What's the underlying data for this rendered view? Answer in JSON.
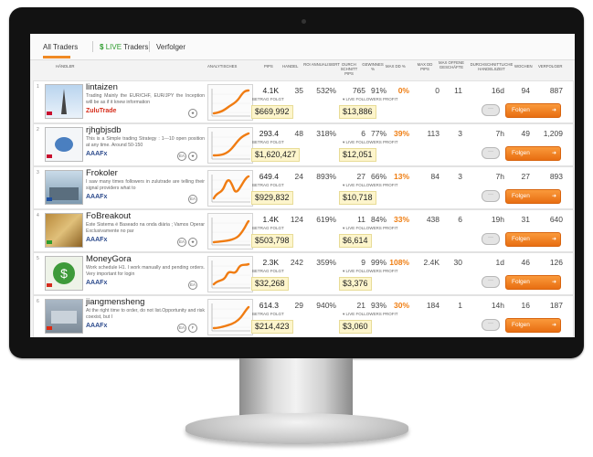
{
  "tabs": {
    "all": "All Traders",
    "live_dollar": "$",
    "live_word": "LIVE",
    "live_rest": "Traders",
    "followers": "Verfolger"
  },
  "headers": {
    "handler": "HÄNDLER",
    "analytics": "ANALYTISCHES",
    "pips": "PIPS",
    "handel": "HANDEL",
    "roi": "ROI ANNUALISIERT",
    "durch": "DURCH SCHNITT PIPS",
    "gewinnes": "GEWINNES %",
    "maxdd": "MAX DD %",
    "maxdd_pips": "MAX DD PIPS",
    "offene": "MAX OFFENE GESCHÄFTE",
    "zeit": "DURCHSCHNITTLICHE HANDELSZEIT",
    "wochen": "WOCHEN",
    "verfolger": "VERFOLGER"
  },
  "labels": {
    "betrag": "BETRAG FOLGT",
    "live_profit": "LIVE FOLLOWERS PROFIT",
    "follow": "Folgen",
    "follow_arrow": "➜",
    "chat": "···"
  },
  "traders": [
    {
      "rank": "1",
      "name": "lintaizen",
      "desc": "Trading Mainly the EUR/CHF, EUR/JPY the Inception will be as if it knew information",
      "broker": "ZuluTrade",
      "broker_style": "zulu",
      "badges": [
        "★"
      ],
      "pips": "4.1K",
      "handel": "35",
      "roi": "532%",
      "durch": "765",
      "gew": "91%",
      "maxdd": "0%",
      "maxdd_pips": "0",
      "offene": "11",
      "zeit": "16d",
      "wochen": "94",
      "folger": "887",
      "betrag": "$669,992",
      "live": "$13,886",
      "flag_color": "#c8102e"
    },
    {
      "rank": "2",
      "name": "rjhgbjsdb",
      "desc": "This is a Simple trading Strategy : 1---10 open position at any time. Around 50-150",
      "broker": "AAAFx",
      "broker_style": "aaa",
      "badges": [
        "EA",
        "★"
      ],
      "pips": "293.4",
      "handel": "48",
      "roi": "318%",
      "durch": "6",
      "gew": "77%",
      "maxdd": "39%",
      "maxdd_pips": "113",
      "offene": "3",
      "zeit": "7h",
      "wochen": "49",
      "folger": "1,209",
      "betrag": "$1,620,427",
      "live": "$12,051",
      "flag_color": "#c8102e"
    },
    {
      "rank": "3",
      "name": "Frokoler",
      "desc": "I saw many times followers in zulutrade are telling their signal providers what to",
      "broker": "AAAFx",
      "broker_style": "aaa",
      "badges": [
        "EA"
      ],
      "pips": "649.4",
      "handel": "24",
      "roi": "893%",
      "durch": "27",
      "gew": "66%",
      "maxdd": "13%",
      "maxdd_pips": "84",
      "offene": "3",
      "zeit": "7h",
      "wochen": "27",
      "folger": "893",
      "betrag": "$929,832",
      "live": "$10,718",
      "flag_color": "#1f4fa0"
    },
    {
      "rank": "4",
      "name": "FoBreakout",
      "desc": "Este Sistema é Baseado na onda diária ; Vamos Operar Exclusivamente no par",
      "broker": "AAAFx",
      "broker_style": "aaa",
      "badges": [
        "EA",
        "★"
      ],
      "pips": "1.4K",
      "handel": "124",
      "roi": "619%",
      "durch": "11",
      "gew": "84%",
      "maxdd": "33%",
      "maxdd_pips": "438",
      "offene": "6",
      "zeit": "19h",
      "wochen": "31",
      "folger": "640",
      "betrag": "$503,798",
      "live": "$6,614",
      "flag_color": "#2e9d2e"
    },
    {
      "rank": "5",
      "name": "MoneyGora",
      "desc": "Work schedule H1. I work manually and pending orders. Very important for login",
      "broker": "AAAFx",
      "broker_style": "aaa",
      "badges": [
        "EA"
      ],
      "pips": "2.3K",
      "handel": "242",
      "roi": "359%",
      "durch": "9",
      "gew": "99%",
      "maxdd": "108%",
      "maxdd_pips": "2.4K",
      "offene": "30",
      "zeit": "1d",
      "wochen": "46",
      "folger": "126",
      "betrag": "$32,268",
      "live": "$3,376",
      "flag_color": "#d52b1e"
    },
    {
      "rank": "6",
      "name": "jiangmensheng",
      "desc": "At the right time to order, do not list.Opportunity and risk coexist, but I",
      "broker": "AAAFx",
      "broker_style": "aaa",
      "badges": [
        "EA",
        "F"
      ],
      "pips": "614.3",
      "handel": "29",
      "roi": "940%",
      "durch": "21",
      "gew": "93%",
      "maxdd": "30%",
      "maxdd_pips": "184",
      "offene": "1",
      "zeit": "14h",
      "wochen": "16",
      "folger": "187",
      "betrag": "$214,423",
      "live": "$3,060",
      "flag_color": "#de2910"
    }
  ],
  "colors": {
    "accent": "#ef7d11",
    "live_green": "#2e9d2e",
    "amount_bg": "#fdf5cc"
  }
}
